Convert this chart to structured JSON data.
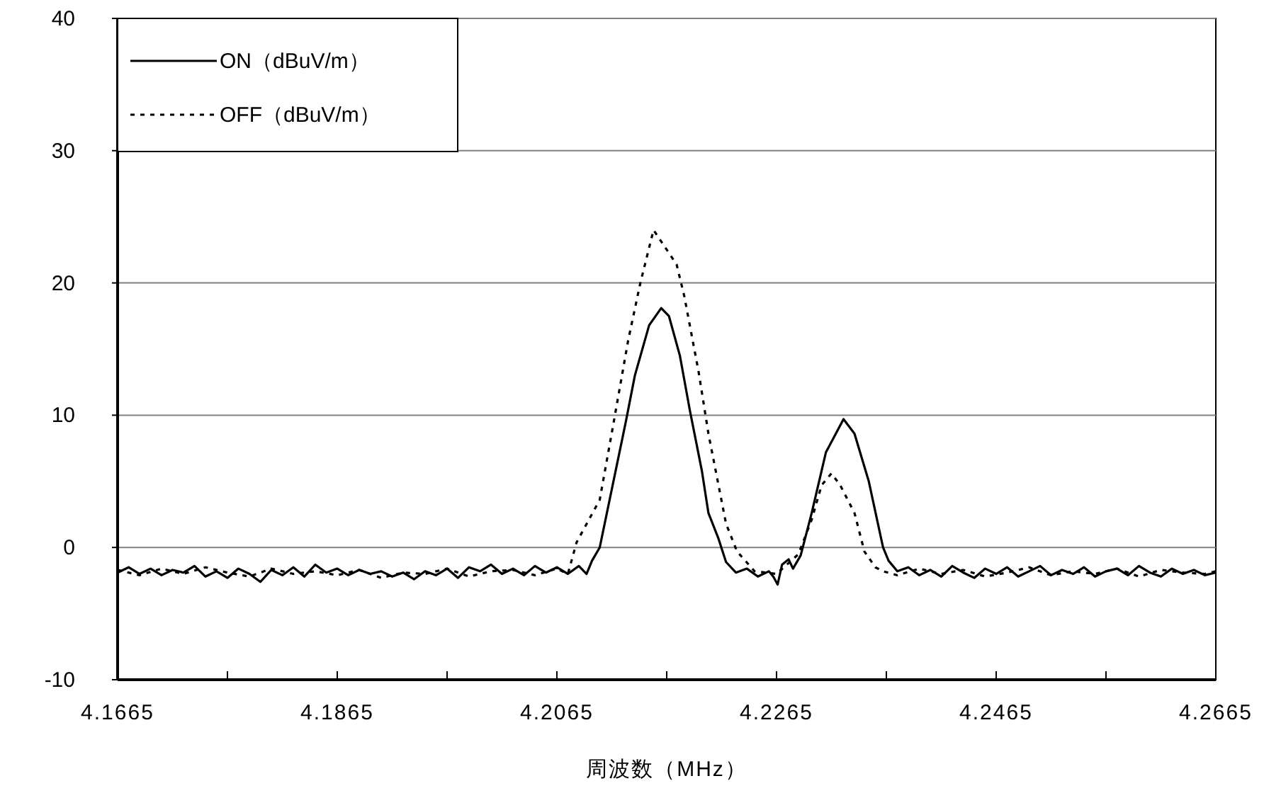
{
  "chart_data": {
    "type": "line",
    "xlabel": "周波数（MHz）",
    "xlim": [
      4.1665,
      4.2665
    ],
    "xticks": [
      4.1665,
      {
        "value": 4.1765,
        "label": null
      },
      4.1865,
      {
        "value": 4.1965,
        "label": null
      },
      4.2065,
      {
        "value": 4.2165,
        "label": null
      },
      4.2265,
      {
        "value": 4.2365,
        "label": null
      },
      4.2465,
      {
        "value": 4.2565,
        "label": null
      },
      4.2665
    ],
    "ylim": [
      -10,
      40
    ],
    "yticks": [
      -10,
      0,
      10,
      20,
      30,
      40
    ],
    "grid": "y",
    "legend": "top left",
    "series": [
      {
        "name": "ON（dBuV/m）",
        "color": "#000000",
        "line_style": "solid",
        "x": [
          4.1665,
          4.1675,
          4.1685,
          4.1695,
          4.1705,
          4.1715,
          4.1725,
          4.1735,
          4.1745,
          4.1755,
          4.1765,
          4.1775,
          4.1785,
          4.1795,
          4.1805,
          4.1815,
          4.1825,
          4.1835,
          4.1845,
          4.1855,
          4.1865,
          4.1875,
          4.1885,
          4.1895,
          4.1905,
          4.1915,
          4.1925,
          4.1935,
          4.1945,
          4.1955,
          4.1965,
          4.1975,
          4.1985,
          4.1995,
          4.2005,
          4.2015,
          4.2025,
          4.2035,
          4.2045,
          4.2055,
          4.2065,
          4.2075,
          4.2085,
          4.2092,
          4.2097,
          4.2104,
          4.2128,
          4.2136,
          4.2149,
          4.216,
          4.2167,
          4.2177,
          4.2186,
          4.2197,
          4.2203,
          4.2212,
          4.2219,
          4.2228,
          4.2238,
          4.2248,
          4.2258,
          4.2262,
          4.2266,
          4.227,
          4.2276,
          4.228,
          4.2287,
          4.2297,
          4.231,
          4.2326,
          4.2336,
          4.2349,
          4.2362,
          4.2367,
          4.2375,
          4.2385,
          4.2395,
          4.2405,
          4.2415,
          4.2425,
          4.2435,
          4.2445,
          4.2455,
          4.2465,
          4.2475,
          4.2485,
          4.2495,
          4.2505,
          4.2515,
          4.2525,
          4.2535,
          4.2545,
          4.2555,
          4.2565,
          4.2575,
          4.2585,
          4.2595,
          4.2605,
          4.2615,
          4.2625,
          4.2635,
          4.2645,
          4.2655,
          4.2665
        ],
        "values": [
          -1.9,
          -1.5,
          -2.0,
          -1.6,
          -2.1,
          -1.7,
          -1.9,
          -1.4,
          -2.2,
          -1.8,
          -2.3,
          -1.6,
          -2.0,
          -2.6,
          -1.7,
          -2.1,
          -1.5,
          -2.2,
          -1.3,
          -1.9,
          -1.6,
          -2.1,
          -1.7,
          -2.0,
          -1.8,
          -2.2,
          -1.9,
          -2.4,
          -1.8,
          -2.1,
          -1.6,
          -2.3,
          -1.5,
          -1.8,
          -1.3,
          -2.0,
          -1.6,
          -2.1,
          -1.4,
          -1.9,
          -1.5,
          -2.0,
          -1.4,
          -2.0,
          -1.0,
          0.0,
          9.6,
          13.0,
          16.8,
          18.1,
          17.5,
          14.5,
          10.4,
          5.8,
          2.6,
          0.7,
          -1.1,
          -1.9,
          -1.6,
          -2.2,
          -1.8,
          -2.2,
          -2.8,
          -1.3,
          -0.9,
          -1.6,
          -0.6,
          2.6,
          7.2,
          9.7,
          8.6,
          5.0,
          0.0,
          -1.0,
          -1.8,
          -1.5,
          -2.1,
          -1.7,
          -2.2,
          -1.4,
          -1.9,
          -2.3,
          -1.6,
          -2.0,
          -1.5,
          -2.2,
          -1.8,
          -1.4,
          -2.1,
          -1.7,
          -2.0,
          -1.5,
          -2.2,
          -1.8,
          -1.6,
          -2.1,
          -1.4,
          -1.9,
          -2.2,
          -1.6,
          -2.0,
          -1.7,
          -2.1,
          -1.9
        ]
      },
      {
        "name": "OFF（dBuV/m）",
        "color": "#000000",
        "line_style": "dotted",
        "x": [
          4.1665,
          4.1685,
          4.1705,
          4.1725,
          4.1745,
          4.1765,
          4.1785,
          4.1805,
          4.1825,
          4.1845,
          4.1865,
          4.1885,
          4.1905,
          4.1925,
          4.1945,
          4.1965,
          4.1985,
          4.2005,
          4.2025,
          4.2045,
          4.2065,
          4.2075,
          4.2083,
          4.2104,
          4.2117,
          4.213,
          4.2141,
          4.2153,
          4.2174,
          4.2181,
          4.2194,
          4.2203,
          4.2219,
          4.2229,
          4.2245,
          4.2265,
          4.2285,
          4.2297,
          4.2306,
          4.2315,
          4.2323,
          4.2336,
          4.2345,
          4.2355,
          4.2362,
          4.2375,
          4.2395,
          4.2415,
          4.2435,
          4.2455,
          4.2475,
          4.2495,
          4.2515,
          4.2535,
          4.2555,
          4.2575,
          4.2595,
          4.2615,
          4.2635,
          4.2655,
          4.2665
        ],
        "values": [
          -1.7,
          -2.1,
          -1.6,
          -2.0,
          -1.5,
          -1.9,
          -2.2,
          -1.6,
          -2.0,
          -1.8,
          -2.1,
          -1.7,
          -2.3,
          -1.9,
          -2.0,
          -1.6,
          -2.2,
          -1.8,
          -1.7,
          -2.1,
          -1.6,
          -2.0,
          0.4,
          3.6,
          9.6,
          15.7,
          20.0,
          24.0,
          21.4,
          19.0,
          13.3,
          8.6,
          1.8,
          -0.3,
          -1.8,
          -2.0,
          -0.5,
          2.1,
          4.7,
          5.6,
          4.7,
          2.6,
          -0.3,
          -1.5,
          -1.8,
          -2.1,
          -1.6,
          -2.0,
          -1.7,
          -2.2,
          -1.9,
          -1.5,
          -2.1,
          -1.8,
          -2.0,
          -1.6,
          -2.2,
          -1.7,
          -1.9,
          -2.0,
          -1.8
        ]
      }
    ]
  }
}
